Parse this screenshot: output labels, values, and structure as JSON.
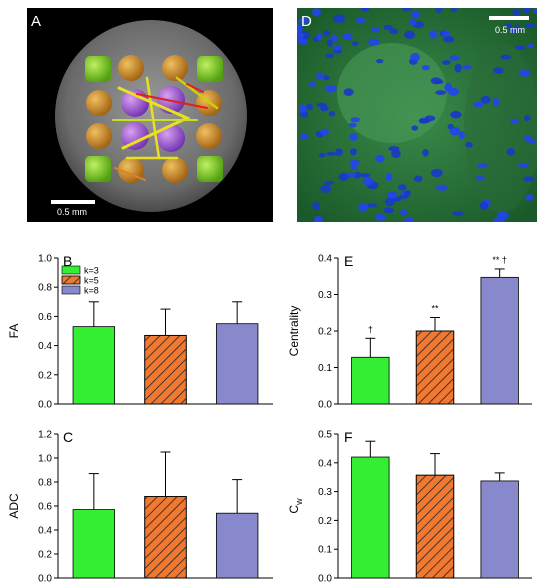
{
  "colors": {
    "k3": "#33ee33",
    "k5": "#f07830",
    "k8": "#8888cc",
    "hatch": "#222222"
  },
  "images": {
    "A": {
      "letter": "A",
      "scale_label": "0.5 mm"
    },
    "D": {
      "letter": "D",
      "scale_label": "0.5 mm"
    }
  },
  "chart_data": [
    {
      "panel": "B",
      "type": "bar",
      "ylabel": "FA",
      "ylim": [
        0,
        1.0
      ],
      "yticks": [
        "0.0",
        "0.2",
        "0.4",
        "0.6",
        "0.8",
        "1.0"
      ],
      "categories": [
        "k=3",
        "k=5",
        "k=8"
      ],
      "values": [
        0.53,
        0.47,
        0.55
      ],
      "errors": [
        0.17,
        0.18,
        0.15
      ],
      "legend": {
        "placement": "top-left",
        "entries": [
          "k=3",
          "k=5",
          "k=8"
        ]
      },
      "annotations": [
        "",
        "",
        ""
      ]
    },
    {
      "panel": "E",
      "type": "bar",
      "ylabel": "Centrality",
      "ylim": [
        0,
        0.4
      ],
      "yticks": [
        "0.0",
        "0.1",
        "0.2",
        "0.3",
        "0.4"
      ],
      "categories": [
        "k=3",
        "k=5",
        "k=8"
      ],
      "values": [
        0.128,
        0.2,
        0.347
      ],
      "errors": [
        0.052,
        0.037,
        0.023
      ],
      "annotations": [
        "†",
        "**",
        "** †"
      ]
    },
    {
      "panel": "C",
      "type": "bar",
      "ylabel": "ADC",
      "ylim": [
        0,
        1.2
      ],
      "yticks": [
        "0.0",
        "0.2",
        "0.4",
        "0.6",
        "0.8",
        "1.0",
        "1.2"
      ],
      "categories": [
        "k=3",
        "k=5",
        "k=8"
      ],
      "values": [
        0.57,
        0.68,
        0.54
      ],
      "errors": [
        0.3,
        0.37,
        0.28
      ],
      "annotations": [
        "",
        "",
        ""
      ]
    },
    {
      "panel": "F",
      "type": "bar",
      "ylabel": "C_w",
      "ylim": [
        0,
        0.5
      ],
      "yticks": [
        "0.0",
        "0.1",
        "0.2",
        "0.3",
        "0.4",
        "0.5"
      ],
      "categories": [
        "k=3",
        "k=5",
        "k=8"
      ],
      "values": [
        0.42,
        0.357,
        0.337
      ],
      "errors": [
        0.055,
        0.075,
        0.028
      ],
      "annotations": [
        "",
        "",
        ""
      ]
    }
  ]
}
